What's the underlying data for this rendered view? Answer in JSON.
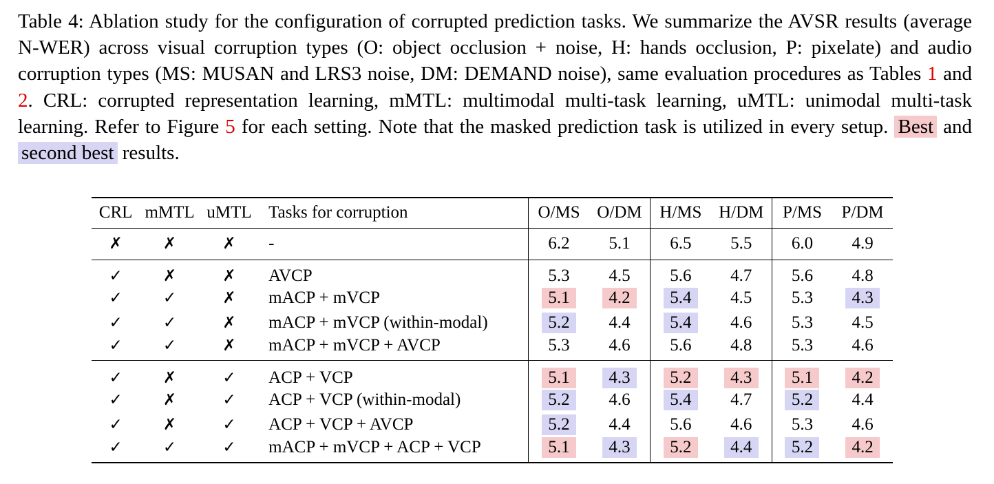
{
  "caption": {
    "text_before_ref1": "Table 4: Ablation study for the configuration of corrupted prediction tasks. We summarize the AVSR results (average N-WER) across visual corruption types (O: object occlusion + noise, H: hands occlusion, P: pixelate) and audio corruption types (MS: MUSAN and LRS3 noise, DM: DEMAND noise), same evaluation procedures as Tables ",
    "ref1": "1",
    "and_text": " and ",
    "ref2": "2",
    "text_after_ref2": ". CRL: corrupted representation learning, mMTL: multimodal multi-task learning, uMTL: unimodal multi-task learning. Refer to Figure ",
    "ref3": "5",
    "text_after_ref3": " for each setting. Note that the masked prediction task is utilized in every setup. ",
    "best_label": "Best",
    "and_word": " and ",
    "second_label": "second best",
    "results_word": " results."
  },
  "table": {
    "headers": [
      "CRL",
      "mMTL",
      "uMTL",
      "Tasks for corruption",
      "O/MS",
      "O/DM",
      "H/MS",
      "H/DM",
      "P/MS",
      "P/DM"
    ],
    "rows": [
      {
        "crl": "✗",
        "mmtl": "✗",
        "umtl": "✗",
        "task": "-",
        "vals": [
          "6.2",
          "5.1",
          "6.5",
          "5.5",
          "6.0",
          "4.9"
        ],
        "hl": [
          "",
          "",
          "",
          "",
          "",
          ""
        ]
      },
      {
        "crl": "✓",
        "mmtl": "✗",
        "umtl": "✗",
        "task": "AVCP",
        "vals": [
          "5.3",
          "4.5",
          "5.6",
          "4.7",
          "5.6",
          "4.8"
        ],
        "hl": [
          "",
          "",
          "",
          "",
          "",
          ""
        ]
      },
      {
        "crl": "✓",
        "mmtl": "✓",
        "umtl": "✗",
        "task": "mACP + mVCP",
        "vals": [
          "5.1",
          "4.2",
          "5.4",
          "4.5",
          "5.3",
          "4.3"
        ],
        "hl": [
          "best",
          "best",
          "second",
          "",
          "",
          "second"
        ]
      },
      {
        "crl": "✓",
        "mmtl": "✓",
        "umtl": "✗",
        "task": "mACP + mVCP (within-modal)",
        "vals": [
          "5.2",
          "4.4",
          "5.4",
          "4.6",
          "5.3",
          "4.5"
        ],
        "hl": [
          "second",
          "",
          "second",
          "",
          "",
          ""
        ]
      },
      {
        "crl": "✓",
        "mmtl": "✓",
        "umtl": "✗",
        "task": "mACP + mVCP + AVCP",
        "vals": [
          "5.3",
          "4.6",
          "5.6",
          "4.8",
          "5.3",
          "4.6"
        ],
        "hl": [
          "",
          "",
          "",
          "",
          "",
          ""
        ]
      },
      {
        "crl": "✓",
        "mmtl": "✗",
        "umtl": "✓",
        "task": "ACP + VCP",
        "vals": [
          "5.1",
          "4.3",
          "5.2",
          "4.3",
          "5.1",
          "4.2"
        ],
        "hl": [
          "best",
          "second",
          "best",
          "best",
          "best",
          "best"
        ]
      },
      {
        "crl": "✓",
        "mmtl": "✗",
        "umtl": "✓",
        "task": "ACP + VCP (within-modal)",
        "vals": [
          "5.2",
          "4.6",
          "5.4",
          "4.7",
          "5.2",
          "4.4"
        ],
        "hl": [
          "second",
          "",
          "second",
          "",
          "second",
          ""
        ]
      },
      {
        "crl": "✓",
        "mmtl": "✗",
        "umtl": "✓",
        "task": "ACP + VCP + AVCP",
        "vals": [
          "5.2",
          "4.4",
          "5.6",
          "4.6",
          "5.3",
          "4.6"
        ],
        "hl": [
          "second",
          "",
          "",
          "",
          "",
          ""
        ]
      },
      {
        "crl": "✓",
        "mmtl": "✓",
        "umtl": "✓",
        "task": "mACP + mVCP + ACP + VCP",
        "vals": [
          "5.1",
          "4.3",
          "5.2",
          "4.4",
          "5.2",
          "4.2"
        ],
        "hl": [
          "best",
          "second",
          "best",
          "second",
          "second",
          "best"
        ]
      }
    ]
  }
}
